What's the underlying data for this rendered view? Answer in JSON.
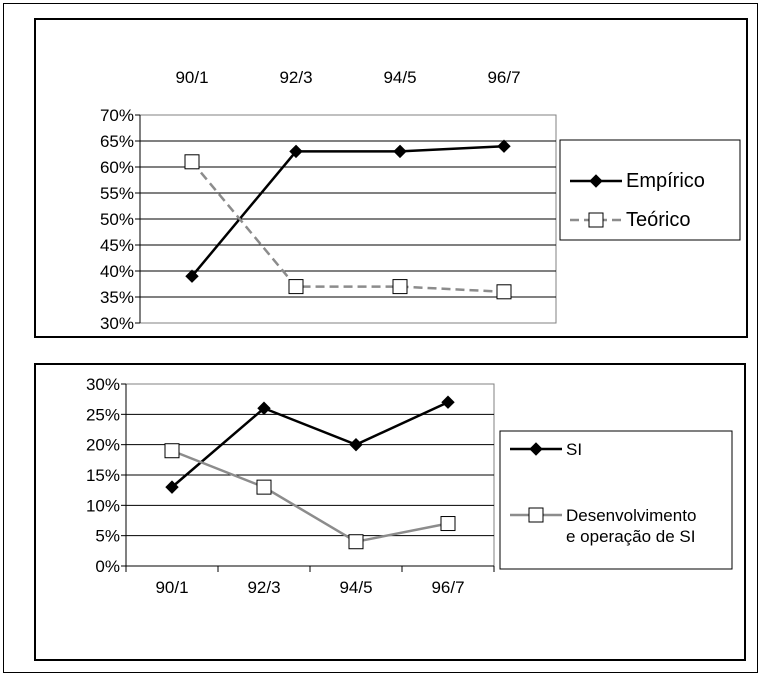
{
  "chart_data": [
    {
      "type": "line",
      "categories": [
        "90/1",
        "92/3",
        "94/5",
        "96/7"
      ],
      "series": [
        {
          "name": "Empírico",
          "values": [
            39,
            63,
            63,
            64
          ],
          "color": "#000000",
          "marker": "filled-diamond",
          "dash": false
        },
        {
          "name": "Teórico",
          "values": [
            61,
            37,
            37,
            36
          ],
          "color": "#8c8c8c",
          "marker": "open-square",
          "dash": true
        }
      ],
      "ylim": [
        30,
        70
      ],
      "yticks": [
        "70%",
        "65%",
        "60%",
        "55%",
        "50%",
        "45%",
        "40%",
        "35%",
        "30%"
      ],
      "x_axis_position": "top",
      "grid": true,
      "legend": {
        "position": "right",
        "entries": [
          "Empírico",
          "Teórico"
        ]
      }
    },
    {
      "type": "line",
      "categories": [
        "90/1",
        "92/3",
        "94/5",
        "96/7"
      ],
      "series": [
        {
          "name": "SI",
          "values": [
            13,
            26,
            20,
            27
          ],
          "color": "#000000",
          "marker": "filled-diamond",
          "dash": false
        },
        {
          "name": "Desenvolvimento e operação de SI",
          "name_lines": [
            "Desenvolvimento",
            "e operação de SI"
          ],
          "values": [
            19,
            13,
            4,
            7
          ],
          "color": "#8c8c8c",
          "marker": "open-square",
          "dash": false
        }
      ],
      "ylim": [
        0,
        30
      ],
      "yticks": [
        "30%",
        "25%",
        "20%",
        "15%",
        "10%",
        "5%",
        "0%"
      ],
      "x_axis_position": "bottom",
      "grid": true,
      "legend": {
        "position": "right",
        "entries": [
          "SI",
          "Desenvolvimento e operação de SI"
        ]
      }
    }
  ]
}
